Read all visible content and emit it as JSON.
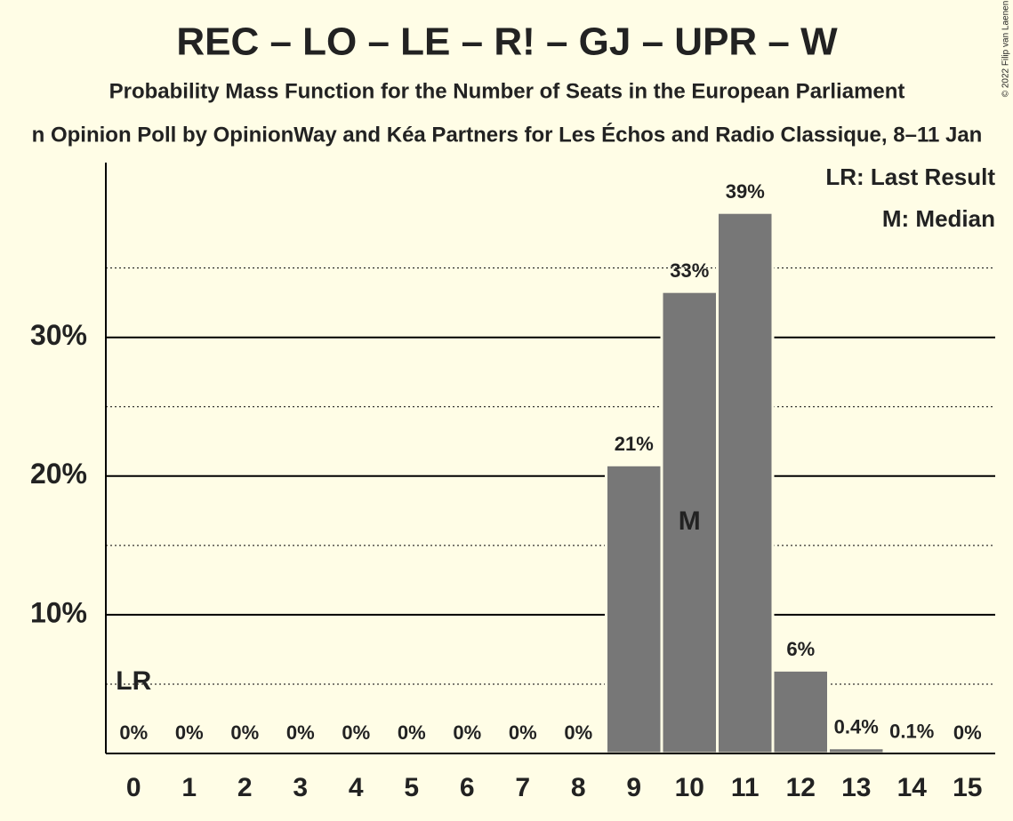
{
  "chart_data": {
    "type": "bar",
    "title": "REC – LO – LE – R! – GJ – UPR – W",
    "subtitle": "Probability Mass Function for the Number of Seats in the European Parliament",
    "subtitle2": "n Opinion Poll by OpinionWay and Kéa Partners for Les Échos and Radio Classique, 8–11 Jan",
    "copyright": "© 2022 Filip van Laenen",
    "categories": [
      "0",
      "1",
      "2",
      "3",
      "4",
      "5",
      "6",
      "7",
      "8",
      "9",
      "10",
      "11",
      "12",
      "13",
      "14",
      "15"
    ],
    "values": [
      0,
      0,
      0,
      0,
      0,
      0,
      0,
      0,
      0,
      20.8,
      33.3,
      39,
      6,
      0.4,
      0.1,
      0
    ],
    "value_labels": [
      "0%",
      "0%",
      "0%",
      "0%",
      "0%",
      "0%",
      "0%",
      "0%",
      "0%",
      "21%",
      "33%",
      "39%",
      "6%",
      "0.4%",
      "0.1%",
      "0%"
    ],
    "color": "#777777",
    "ylim": [
      0,
      42.6
    ],
    "yticks": [
      {
        "value": 10,
        "label": "10%"
      },
      {
        "value": 20,
        "label": "20%"
      },
      {
        "value": 30,
        "label": "30%"
      }
    ],
    "minor_yticks": [
      5,
      15,
      25,
      35
    ],
    "grid": true,
    "annotations": [
      {
        "text": "LR",
        "category": 0
      },
      {
        "text": "M",
        "category": 10
      }
    ],
    "legend": [
      "LR: Last Result",
      "M: Median"
    ],
    "legend_position": "upper right"
  }
}
